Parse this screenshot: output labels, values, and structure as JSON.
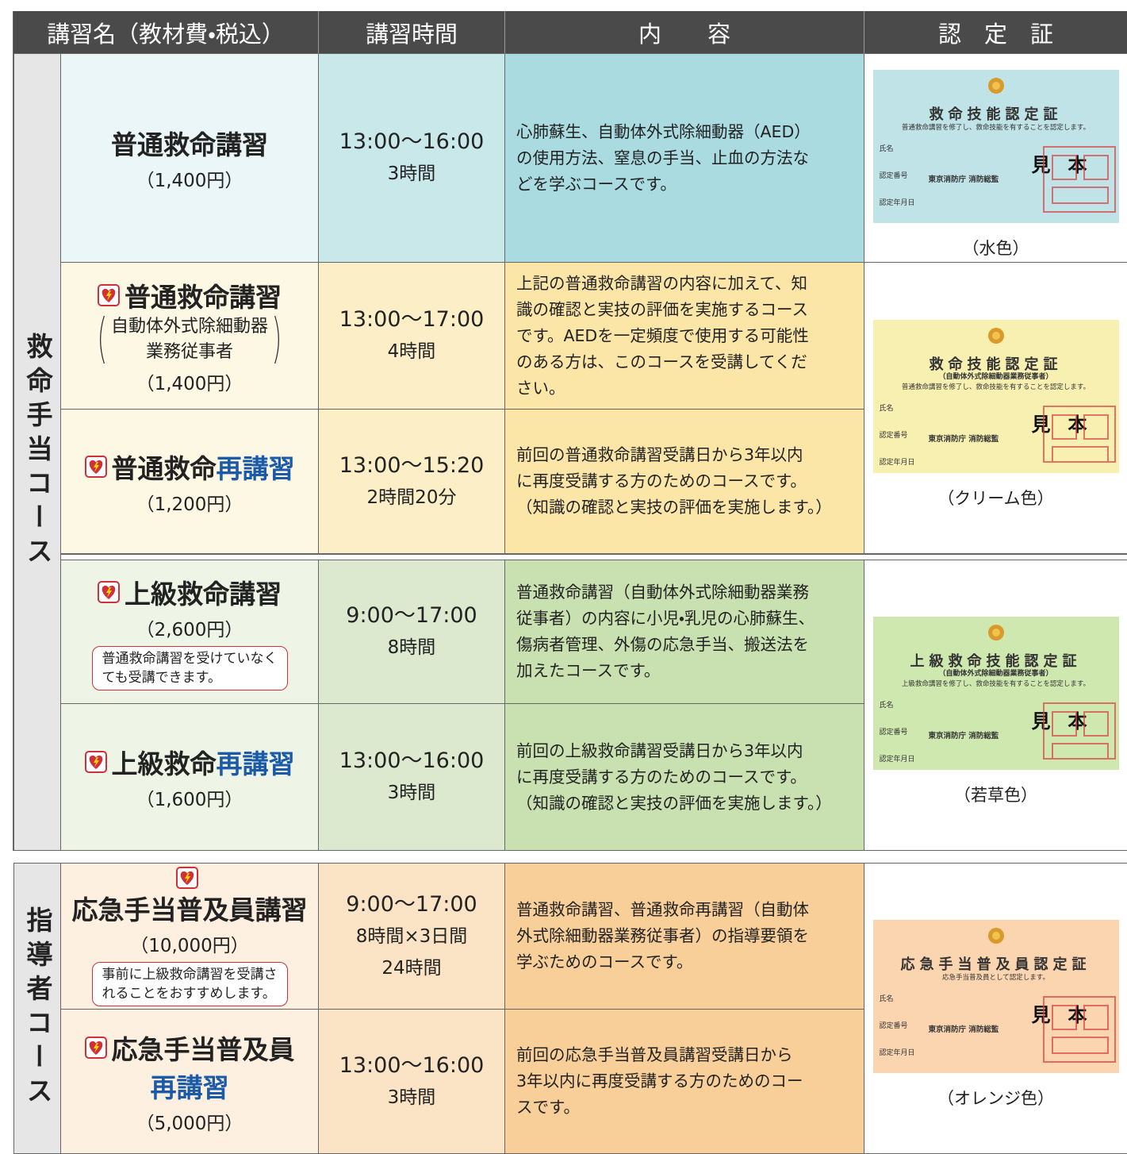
{
  "header": [
    "講習名（教材費・税込）",
    "講習時間",
    "内　　容",
    "認　定　証"
  ],
  "groups": [
    {
      "label": "救命手当コース"
    },
    {
      "label": "指導者コース"
    }
  ],
  "courses": [
    {
      "title": [
        "普通救命講習"
      ],
      "fee": "（1,400円）",
      "time": [
        "13:00〜16:00",
        "3時間"
      ],
      "content": [
        "心肺蘇生、自動体外式除細動器（AED）",
        "の使用方法、窒息の手当、止血の方法な",
        "どを学ぶコースです。"
      ]
    },
    {
      "title": [
        "普通救命講習"
      ],
      "sub": [
        "自動体外式除細動器",
        "業務従事者"
      ],
      "fee": "（1,400円）",
      "time": [
        "13:00〜17:00",
        "4時間"
      ],
      "content": [
        "上記の普通救命講習の内容に加えて、知",
        "識の確認と実技の評価を実施するコース",
        "です。AEDを一定頻度で使用する可能性",
        "のある方は、このコースを受講してくだ",
        "さい。"
      ]
    },
    {
      "title": [
        "普通救命",
        "再講習"
      ],
      "fee": "（1,200円）",
      "time": [
        "13:00〜15:20",
        "2時間20分"
      ],
      "content": [
        "前回の普通救命講習受講日から3年以内",
        "に再度受講する方のためのコースです。",
        "（知識の確認と実技の評価を実施します。）"
      ]
    },
    {
      "title": [
        "上級救命講習"
      ],
      "fee": "（2,600円）",
      "note": [
        "普通救命講習を受けていなく",
        "ても受講できます。"
      ],
      "time": [
        "9:00〜17:00",
        "8時間"
      ],
      "content": [
        "普通救命講習（自動体外式除細動器業務",
        "従事者）の内容に小児・乳児の心肺蘇生、",
        "傷病者管理、外傷の応急手当、搬送法を",
        "加えたコースです。"
      ]
    },
    {
      "title": [
        "上級救命",
        "再講習"
      ],
      "fee": "（1,600円）",
      "time": [
        "13:00〜16:00",
        "3時間"
      ],
      "content": [
        "前回の上級救命講習受講日から3年以内",
        "に再度受講する方のためのコースです。",
        "（知識の確認と実技の評価を実施します。）"
      ]
    },
    {
      "title": [
        "応急手当普及員講習"
      ],
      "fee": "（10,000円）",
      "note": [
        "事前に上級救命講習を受講さ",
        "れることをおすすめします。"
      ],
      "time": [
        "9:00〜17:00",
        "8時間×3日間",
        "24時間"
      ],
      "content": [
        "普通救命講習、普通救命再講習（自動体",
        "外式除細動器業務従事者）の指導要領を",
        "学ぶためのコースです。"
      ]
    },
    {
      "title": [
        "応急手当普及員",
        "再講習"
      ],
      "fee": "（5,000円）",
      "time": [
        "13:00〜16:00",
        "3時間"
      ],
      "content": [
        "前回の応急手当普及員講習受講日から",
        "3年以内に再度受講する方のためのコー",
        "スです。"
      ]
    }
  ],
  "certificates": [
    {
      "title": "救命技能認定証",
      "statement": "普通救命講習を修了し、救命技能を有することを認定します。",
      "fields": [
        "氏名",
        "認定番号",
        "認定年月日"
      ],
      "issuer": "東京消防庁 消防総監",
      "sample": "見本",
      "color_label": "（水色）"
    },
    {
      "title": "救命技能認定証",
      "subtitle": "（自動体外式除細動器業務従事者）",
      "statement": "普通救命講習を修了し、救命技能を有することを認定します。",
      "fields": [
        "氏名",
        "認定番号",
        "認定年月日"
      ],
      "issuer": "東京消防庁 消防総監",
      "sample": "見本",
      "color_label": "（クリーム色）"
    },
    {
      "title": "上級救命技能認定証",
      "subtitle": "（自動体外式除細動器業務従事者）",
      "statement": "上級救命講習を修了し、救命技能を有することを認定します。",
      "fields": [
        "氏名",
        "認定番号",
        "認定年月日"
      ],
      "issuer": "東京消防庁 消防総監",
      "sample": "見本",
      "color_label": "（若草色）"
    },
    {
      "title": "応急手当普及員認定証",
      "statement": "応急手当普及員として認定します。",
      "fields": [
        "氏名",
        "認定番号",
        "認定年月日"
      ],
      "issuer": "東京消防庁 消防総監",
      "sample": "見本",
      "color_label": "（オレンジ色）"
    }
  ]
}
